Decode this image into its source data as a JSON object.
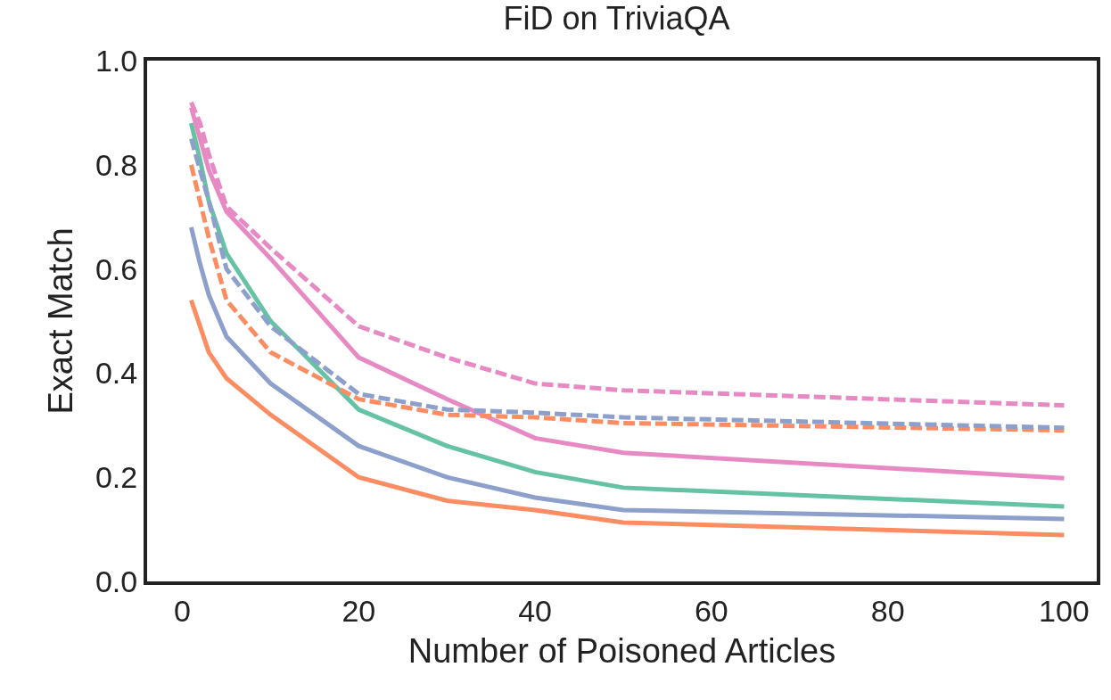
{
  "chart_data": {
    "type": "line",
    "title": "FiD on TriviaQA",
    "xlabel": "Number of Poisoned Articles",
    "ylabel": "Exact Match",
    "x": [
      1,
      2,
      3,
      5,
      10,
      20,
      30,
      40,
      50,
      100
    ],
    "xlim": [
      -4,
      103.7
    ],
    "xticks": [
      0,
      20,
      40,
      60,
      80,
      100
    ],
    "ylim": [
      0,
      1
    ],
    "yticks": [
      {
        "value": 0,
        "label": "0.0"
      },
      0.2,
      0.4,
      0.6,
      0.8,
      {
        "value": 1,
        "label": "1.0"
      }
    ],
    "marker": "none",
    "series": [
      {
        "color": "#fc8d62",
        "line_style": "solid",
        "values": [
          0.54,
          0.49,
          0.44,
          0.39,
          0.32,
          0.2,
          0.155,
          0.137,
          0.113,
          0.089
        ]
      },
      {
        "color": "#8da0cb",
        "line_style": "solid",
        "values": [
          0.68,
          0.61,
          0.55,
          0.47,
          0.38,
          0.26,
          0.2,
          0.161,
          0.137,
          0.12
        ]
      },
      {
        "color": "#66c2a5",
        "line_style": "solid",
        "values": [
          0.88,
          0.81,
          0.73,
          0.63,
          0.5,
          0.33,
          0.26,
          0.21,
          0.18,
          0.144
        ]
      },
      {
        "color": "#e78ac3",
        "line_style": "solid",
        "values": [
          0.91,
          0.85,
          0.79,
          0.71,
          0.62,
          0.43,
          0.35,
          0.275,
          0.247,
          0.198
        ]
      },
      {
        "color": "#e78ac3",
        "line_style": "dashed",
        "values": [
          0.92,
          0.88,
          0.82,
          0.72,
          0.64,
          0.49,
          0.43,
          0.38,
          0.367,
          0.338
        ]
      },
      {
        "color": "#fc8d62",
        "line_style": "dashed",
        "values": [
          0.8,
          0.73,
          0.66,
          0.54,
          0.44,
          0.35,
          0.32,
          0.315,
          0.304,
          0.29
        ]
      },
      {
        "color": "#8da0cb",
        "line_style": "dashed",
        "values": [
          0.85,
          0.79,
          0.73,
          0.6,
          0.49,
          0.36,
          0.33,
          0.324,
          0.315,
          0.295
        ]
      }
    ]
  }
}
